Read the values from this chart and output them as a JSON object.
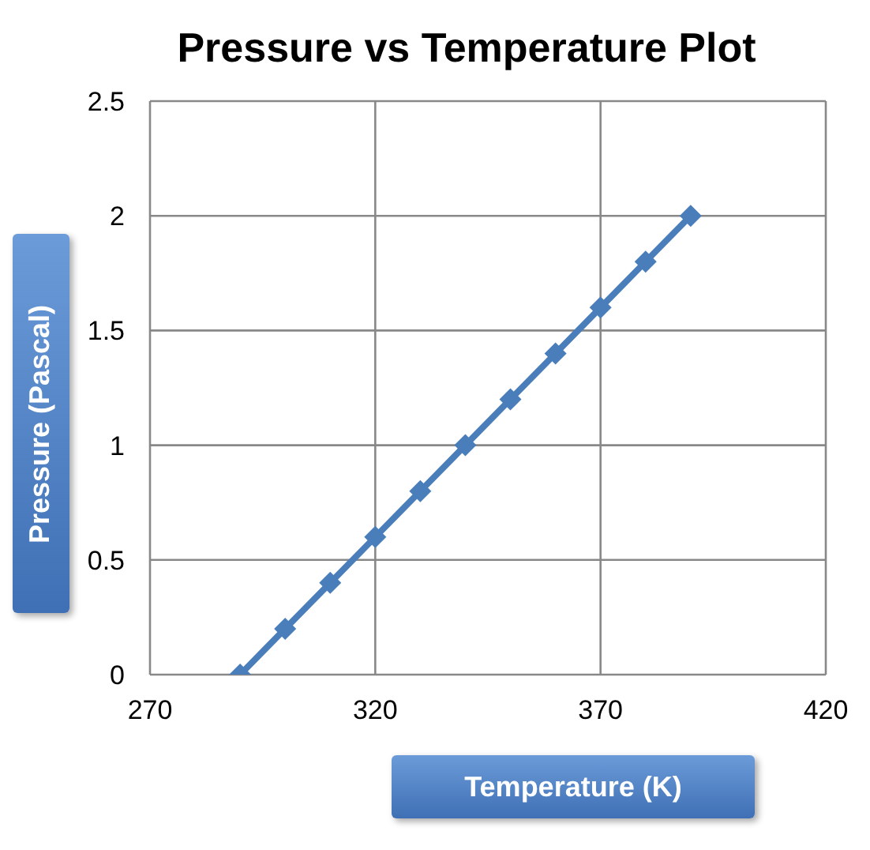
{
  "chart_data": {
    "type": "line",
    "title": "Pressure vs Temperature Plot",
    "xlabel": "Temperature (K)",
    "ylabel": "Pressure (Pascal)",
    "x": [
      290,
      300,
      310,
      320,
      330,
      340,
      350,
      360,
      370,
      380,
      390
    ],
    "series": [
      {
        "color": "#4a7ebb",
        "values": [
          0,
          0.2,
          0.4,
          0.6,
          0.8,
          1.0,
          1.2,
          1.4,
          1.6,
          1.8,
          2.0
        ]
      }
    ],
    "xlim": [
      270,
      420
    ],
    "xticks": [
      270,
      320,
      370,
      420
    ],
    "ylim": [
      0,
      2.5
    ],
    "yticks": [
      0,
      0.5,
      1,
      1.5,
      2,
      2.5
    ],
    "grid": true,
    "marker": "diamond",
    "line_style": "solid",
    "legend": false
  }
}
